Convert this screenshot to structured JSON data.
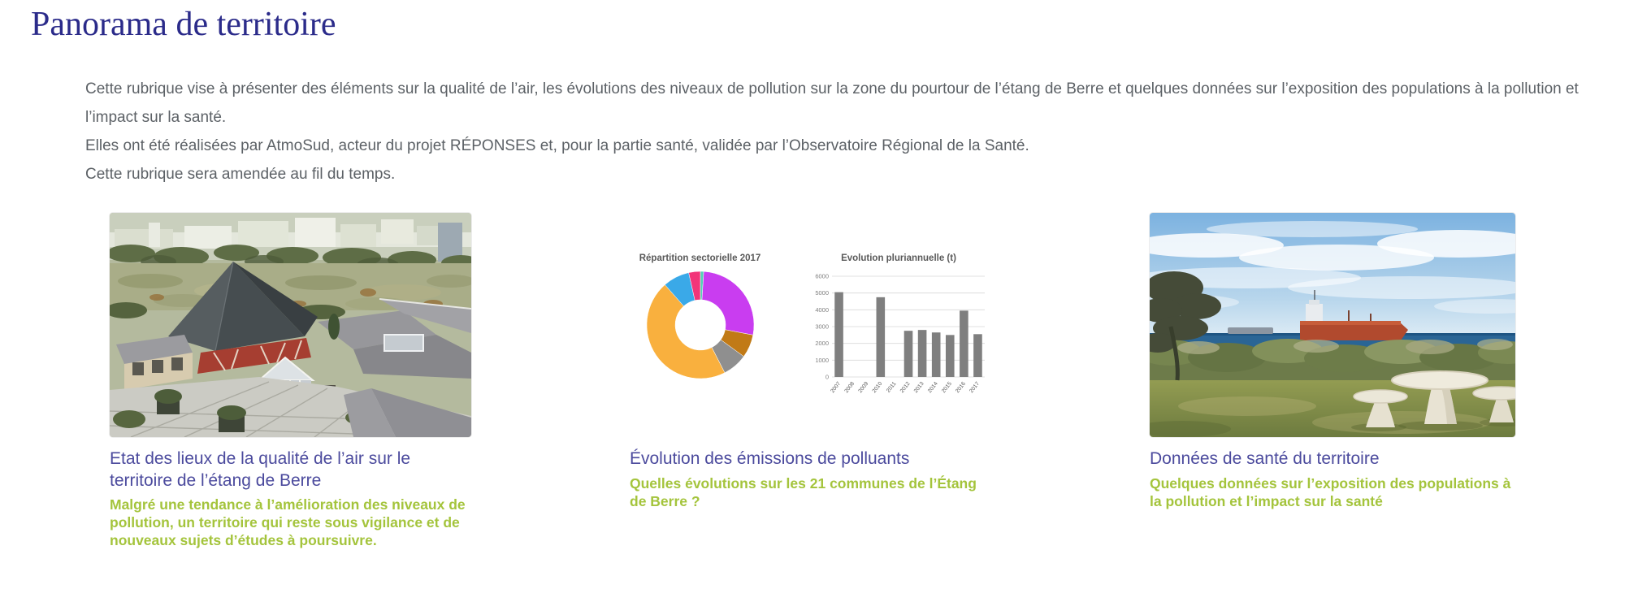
{
  "page": {
    "title": "Panorama de territoire",
    "intro": [
      "Cette rubrique vise à présenter des éléments sur la qualité de l’air, les évolutions des niveaux de pollution sur la zone du pourtour de l’étang de Berre et quelques données sur l’exposition des populations à la pollution et l’impact sur la santé.",
      "Elles ont été réalisées par AtmoSud, acteur du projet RÉPONSES et, pour la partie santé, validée par l’Observatoire Régional de la Santé.",
      "Cette rubrique sera amendée au fil du temps."
    ]
  },
  "cards": [
    {
      "image": "aerial-view-of-building-complex",
      "title": "Etat des lieux de la qualité de l’air sur le territoire de l’étang de Berre",
      "subtitle": "Malgré une tendance à l’amélioration des niveaux de pollution, un territoire qui reste sous vigilance et de nouveaux sujets d’études à poursuivre."
    },
    {
      "image": "emissions-charts-figure",
      "title": "Évolution des émissions de polluants",
      "subtitle": "Quelles évolutions sur les 21 communes de l’Étang de Berre ?"
    },
    {
      "image": "coastal-view-with-tanker",
      "title": "Données de santé du territoire",
      "subtitle": "Quelques données sur l’exposition des populations à la pollution et l’impact sur la santé"
    }
  ],
  "colors": {
    "heading": "#2b2b8a",
    "card_title": "#4b4a9d",
    "card_subtitle": "#a4c43c",
    "body_text": "#5c6166"
  },
  "chart_data": [
    {
      "type": "pie",
      "donut": true,
      "title": "Répartition sectorielle 2017",
      "legend": "none",
      "slices": [
        {
          "name": "slice-1",
          "value": 1,
          "color": "#4fd1b5"
        },
        {
          "name": "slice-2",
          "value": 27,
          "color": "#c93df0"
        },
        {
          "name": "slice-3",
          "value": 7,
          "color": "#c17a16"
        },
        {
          "name": "slice-4",
          "value": 7.5,
          "color": "#8f8f8f"
        },
        {
          "name": "slice-5",
          "value": 46,
          "color": "#f9b03e"
        },
        {
          "name": "slice-6",
          "value": 8,
          "color": "#3aa9e8"
        },
        {
          "name": "slice-7",
          "value": 3.5,
          "color": "#f23579"
        }
      ]
    },
    {
      "type": "bar",
      "title": "Evolution pluriannuelle (t)",
      "categories": [
        "2007",
        "2008",
        "2009",
        "2010",
        "2011",
        "2012",
        "2013",
        "2014",
        "2015",
        "2016",
        "2017"
      ],
      "values": [
        5050,
        0,
        0,
        4750,
        0,
        2750,
        2800,
        2650,
        2500,
        3950,
        2550
      ],
      "ylim": [
        0,
        6000
      ],
      "yticks": [
        0,
        1000,
        2000,
        3000,
        4000,
        5000,
        6000
      ],
      "bar_color": "#7f7f7f",
      "grid": true,
      "legend": "none"
    }
  ]
}
